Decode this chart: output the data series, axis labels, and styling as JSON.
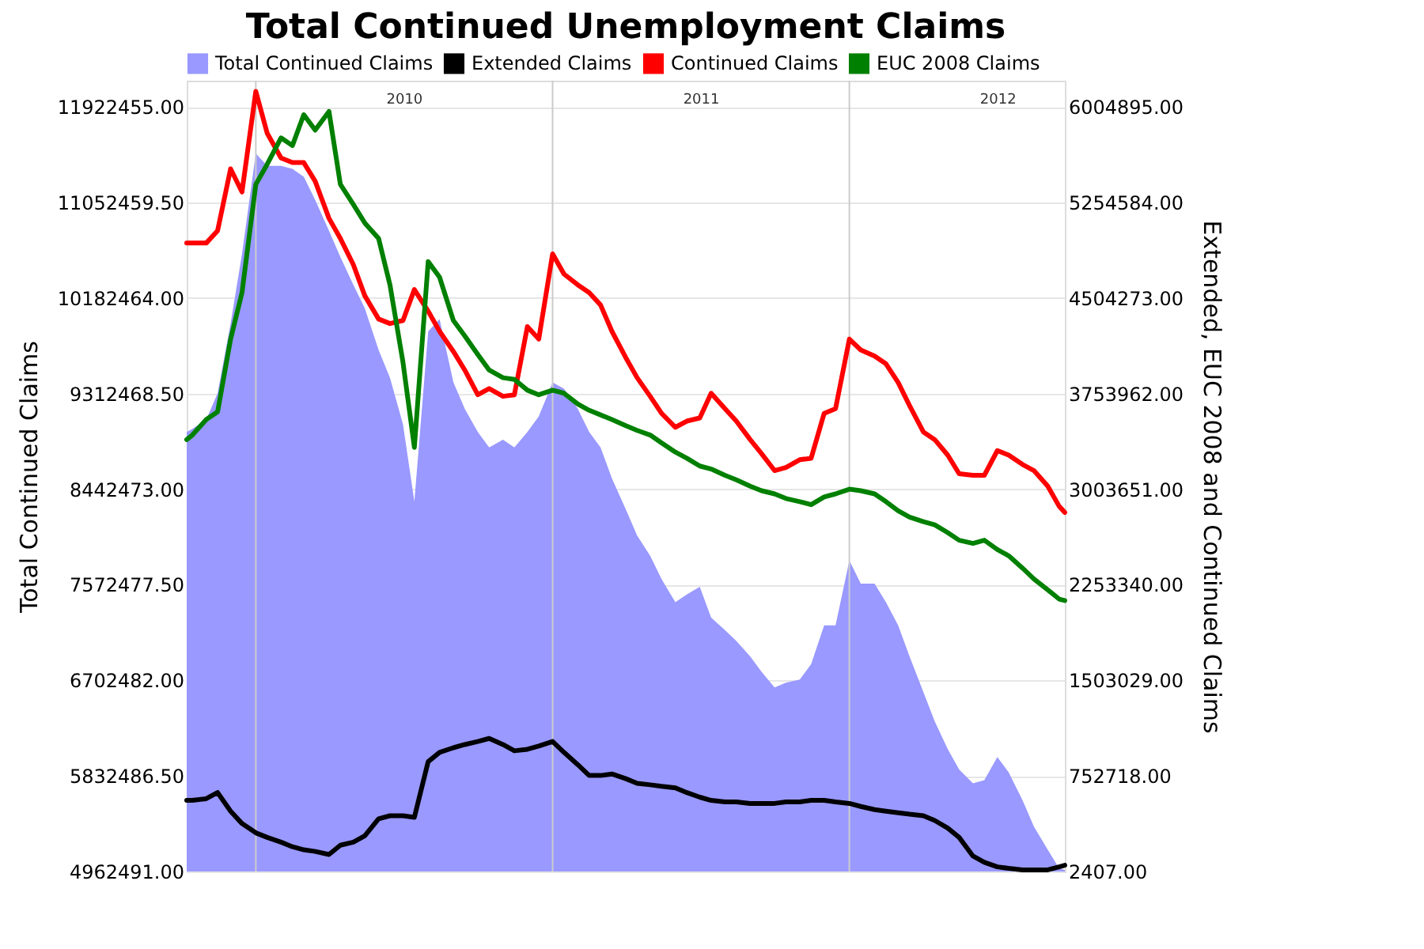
{
  "chart_data": {
    "type": "line",
    "title": "Total Continued Unemployment Claims",
    "ylabel": "Total Continued Claims",
    "y2label": "Extended, EUC 2008 and Continued Claims",
    "x": [
      "2009-10-08",
      "2009-10-15",
      "2009-11-01",
      "2009-11-15",
      "2009-12-01",
      "2009-12-15",
      "2010-01-01",
      "2010-01-15",
      "2010-02-01",
      "2010-02-15",
      "2010-03-01",
      "2010-03-15",
      "2010-04-01",
      "2010-04-15",
      "2010-05-01",
      "2010-05-15",
      "2010-06-01",
      "2010-06-15",
      "2010-07-01",
      "2010-07-15",
      "2010-08-01",
      "2010-08-15",
      "2010-09-01",
      "2010-09-15",
      "2010-10-01",
      "2010-10-15",
      "2010-11-01",
      "2010-11-15",
      "2010-12-01",
      "2010-12-15",
      "2011-01-01",
      "2011-01-15",
      "2011-02-01",
      "2011-02-15",
      "2011-03-01",
      "2011-03-15",
      "2011-04-01",
      "2011-04-15",
      "2011-05-01",
      "2011-05-15",
      "2011-06-01",
      "2011-06-15",
      "2011-07-01",
      "2011-07-15",
      "2011-08-01",
      "2011-08-15",
      "2011-09-01",
      "2011-09-15",
      "2011-10-01",
      "2011-10-15",
      "2011-11-01",
      "2011-11-15",
      "2011-12-01",
      "2011-12-15",
      "2012-01-01",
      "2012-01-15",
      "2012-02-01",
      "2012-02-15",
      "2012-03-01",
      "2012-03-15",
      "2012-04-01",
      "2012-04-15",
      "2012-05-01",
      "2012-05-15",
      "2012-06-01",
      "2012-06-15",
      "2012-07-01",
      "2012-07-15",
      "2012-08-01",
      "2012-08-15",
      "2012-09-01",
      "2012-09-15",
      "2012-09-22"
    ],
    "series": [
      {
        "name": "Total Continued Claims",
        "type": "area",
        "axis": "y",
        "color": "#9999ff",
        "values": [
          8964000,
          8992000,
          9076000,
          9316000,
          9950000,
          10584000,
          11500000,
          11387000,
          11387000,
          11359000,
          11288000,
          11077000,
          10795000,
          10556000,
          10302000,
          10091000,
          9710000,
          9457000,
          9034000,
          8330000,
          9880000,
          9992000,
          9415000,
          9175000,
          8964000,
          8823000,
          8893000,
          8823000,
          8964000,
          9105000,
          9415000,
          9358000,
          9175000,
          8964000,
          8823000,
          8541000,
          8259000,
          8020000,
          7837000,
          7625000,
          7414000,
          7484000,
          7555000,
          7273000,
          7160000,
          7062000,
          6921000,
          6780000,
          6639000,
          6681000,
          6710000,
          6850000,
          7203000,
          7203000,
          7794000,
          7583000,
          7583000,
          7414000,
          7203000,
          6921000,
          6597000,
          6329000,
          6076000,
          5892000,
          5766000,
          5794000,
          6005000,
          5864000,
          5611000,
          5371000,
          5160000,
          4991000,
          4977000
        ]
      },
      {
        "name": "Extended Claims",
        "axis": "y2",
        "color": "#000000",
        "values": [
          561000,
          561000,
          574000,
          622000,
          476000,
          379000,
          306000,
          270000,
          233000,
          197000,
          173000,
          160000,
          136000,
          209000,
          233000,
          282000,
          416000,
          440000,
          440000,
          428000,
          865000,
          938000,
          974000,
          999000,
          1023000,
          1047000,
          999000,
          950000,
          962000,
          987000,
          1023000,
          938000,
          841000,
          756000,
          756000,
          768000,
          731000,
          695000,
          683000,
          671000,
          659000,
          622000,
          586000,
          561000,
          549000,
          549000,
          537000,
          537000,
          537000,
          549000,
          549000,
          561000,
          561000,
          549000,
          537000,
          513000,
          488000,
          476000,
          464000,
          452000,
          440000,
          403000,
          343000,
          270000,
          124000,
          75000,
          39000,
          27000,
          15000,
          15000,
          15000,
          39000,
          51000
        ]
      },
      {
        "name": "Continued Claims",
        "axis": "y2",
        "color": "#ff0000",
        "values": [
          4936000,
          4936000,
          4936000,
          5033000,
          5519000,
          5337000,
          6127000,
          5798000,
          5604000,
          5568000,
          5568000,
          5422000,
          5130000,
          4972000,
          4766000,
          4523000,
          4340000,
          4304000,
          4328000,
          4571000,
          4401000,
          4243000,
          4085000,
          3939000,
          3745000,
          3794000,
          3733000,
          3745000,
          4280000,
          4182000,
          4851000,
          4693000,
          4608000,
          4547000,
          4450000,
          4243000,
          4037000,
          3879000,
          3733000,
          3599000,
          3490000,
          3538000,
          3563000,
          3757000,
          3636000,
          3538000,
          3393000,
          3283000,
          3150000,
          3174000,
          3235000,
          3247000,
          3599000,
          3636000,
          4182000,
          4097000,
          4049000,
          3988000,
          3842000,
          3660000,
          3453000,
          3393000,
          3271000,
          3125000,
          3113000,
          3113000,
          3307000,
          3271000,
          3198000,
          3150000,
          3028000,
          2870000,
          2821000
        ]
      },
      {
        "name": "EUC 2008 Claims",
        "axis": "y2",
        "color": "#008000",
        "values": [
          3393000,
          3429000,
          3550000,
          3611000,
          4182000,
          4547000,
          5397000,
          5555000,
          5762000,
          5701000,
          5944000,
          5823000,
          5969000,
          5397000,
          5239000,
          5094000,
          4972000,
          4608000,
          4000000,
          3332000,
          4790000,
          4668000,
          4328000,
          4207000,
          4061000,
          3939000,
          3879000,
          3866000,
          3781000,
          3745000,
          3781000,
          3757000,
          3672000,
          3623000,
          3587000,
          3550000,
          3502000,
          3465000,
          3429000,
          3368000,
          3295000,
          3247000,
          3186000,
          3162000,
          3113000,
          3077000,
          3028000,
          2992000,
          2967000,
          2931000,
          2906000,
          2882000,
          2943000,
          2967000,
          3004000,
          2992000,
          2967000,
          2906000,
          2834000,
          2785000,
          2749000,
          2724000,
          2663000,
          2603000,
          2578000,
          2603000,
          2530000,
          2481000,
          2384000,
          2299000,
          2214000,
          2141000,
          2129000
        ]
      }
    ],
    "xlim": [
      "2009-10-08",
      "2012-09-22"
    ],
    "xticks": [
      {
        "value": "2010-01-01",
        "label": null
      },
      {
        "value": "2010-07-02",
        "label": "2010"
      },
      {
        "value": "2011-01-01",
        "label": null
      },
      {
        "value": "2011-07-02",
        "label": "2011"
      },
      {
        "value": "2012-01-01",
        "label": null
      },
      {
        "value": "2012-07-01",
        "label": "2012"
      }
    ],
    "ylim": [
      4962491,
      12162000
    ],
    "yticks": [
      {
        "value": 4962491,
        "label": "4962491.00"
      },
      {
        "value": 5832486.5,
        "label": "5832486.50"
      },
      {
        "value": 6702482,
        "label": "6702482.00"
      },
      {
        "value": 7572477.5,
        "label": "7572477.50"
      },
      {
        "value": 8442473,
        "label": "8442473.00"
      },
      {
        "value": 9312468.5,
        "label": "9312468.50"
      },
      {
        "value": 10182464,
        "label": "10182464.00"
      },
      {
        "value": 11052459.5,
        "label": "11052459.50"
      },
      {
        "value": 11922455,
        "label": "11922455.00"
      }
    ],
    "y2lim": [
      2407,
      6211000
    ],
    "y2ticks": [
      {
        "value": 2407,
        "label": "2407.00"
      },
      {
        "value": 752718,
        "label": "752718.00"
      },
      {
        "value": 1503029,
        "label": "1503029.00"
      },
      {
        "value": 2253340,
        "label": "2253340.00"
      },
      {
        "value": 3003651,
        "label": "3003651.00"
      },
      {
        "value": 3753962,
        "label": "3753962.00"
      },
      {
        "value": 4504273,
        "label": "4504273.00"
      },
      {
        "value": 5254584,
        "label": "5254584.00"
      },
      {
        "value": 6004895,
        "label": "6004895.00"
      }
    ],
    "grid": true,
    "legend": "top"
  }
}
